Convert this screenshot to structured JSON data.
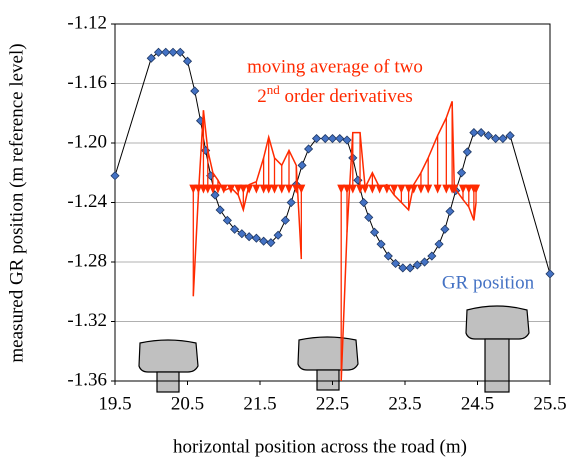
{
  "chart_data": {
    "type": "line",
    "xlabel": "horizontal position across the road (m)",
    "ylabel": "measured GR position (m reference level)",
    "xlim": [
      19.5,
      25.5
    ],
    "xticks": [
      19.5,
      20.5,
      21.5,
      22.5,
      23.5,
      24.5,
      25.5
    ],
    "ylim": [
      -1.36,
      -1.12
    ],
    "yticks": [
      -1.36,
      -1.32,
      -1.28,
      -1.24,
      {
        "value": -1.2,
        "label": "-1.20"
      },
      -1.16,
      -1.12
    ],
    "grid": true,
    "stem_baseline": -1.232,
    "annotation": {
      "line1": "moving average of two",
      "line2_number": "2",
      "line2_superscript": "nd",
      "line2_rest": " order derivatives"
    },
    "series": [
      {
        "name": "GR position",
        "color": "#4472c4",
        "marker": "diamond",
        "x": [
          19.5,
          20.0,
          20.1,
          20.2,
          20.3,
          20.4,
          20.5,
          20.6,
          20.68,
          20.75,
          20.82,
          20.88,
          20.95,
          21.05,
          21.15,
          21.25,
          21.35,
          21.45,
          21.55,
          21.65,
          21.75,
          21.85,
          21.93,
          22.0,
          22.08,
          22.17,
          22.28,
          22.4,
          22.5,
          22.6,
          22.7,
          22.78,
          22.85,
          22.93,
          23.0,
          23.08,
          23.17,
          23.27,
          23.37,
          23.47,
          23.57,
          23.67,
          23.77,
          23.87,
          23.97,
          24.05,
          24.12,
          24.2,
          24.28,
          24.36,
          24.45,
          24.55,
          24.65,
          24.75,
          24.85,
          24.95,
          25.5
        ],
        "values": [
          -1.222,
          -1.143,
          -1.139,
          -1.139,
          -1.139,
          -1.139,
          -1.145,
          -1.165,
          -1.185,
          -1.205,
          -1.222,
          -1.235,
          -1.245,
          -1.252,
          -1.258,
          -1.261,
          -1.263,
          -1.264,
          -1.266,
          -1.267,
          -1.262,
          -1.252,
          -1.24,
          -1.228,
          -1.215,
          -1.204,
          -1.197,
          -1.197,
          -1.197,
          -1.197,
          -1.198,
          -1.21,
          -1.225,
          -1.24,
          -1.25,
          -1.26,
          -1.268,
          -1.276,
          -1.281,
          -1.284,
          -1.284,
          -1.282,
          -1.28,
          -1.276,
          -1.268,
          -1.258,
          -1.246,
          -1.232,
          -1.22,
          -1.206,
          -1.193,
          -1.193,
          -1.195,
          -1.197,
          -1.197,
          -1.195,
          -1.288
        ]
      },
      {
        "color": "#ff2a00",
        "stems": true,
        "x": [
          20.58,
          20.65,
          20.72,
          20.78,
          20.85,
          20.92,
          21.0,
          21.1,
          21.2,
          21.27,
          21.35,
          21.45,
          21.55,
          21.62,
          21.7,
          21.8,
          21.9,
          22.0,
          22.07,
          22.3,
          22.62,
          22.7,
          22.78,
          22.88,
          22.95,
          23.05,
          23.15,
          23.25,
          23.35,
          23.45,
          23.55,
          23.62,
          23.72,
          23.82,
          23.95,
          24.07,
          24.15,
          24.18,
          24.3,
          24.38,
          24.45,
          24.48
        ],
        "values": [
          -1.303,
          -1.235,
          -1.178,
          -1.205,
          -1.22,
          -1.225,
          -1.232,
          -1.23,
          -1.235,
          -1.245,
          -1.228,
          -1.226,
          -1.21,
          -1.196,
          -1.21,
          -1.215,
          -1.205,
          -1.215,
          -1.278,
          null,
          -1.36,
          -1.26,
          -1.193,
          -1.193,
          -1.23,
          -1.22,
          -1.23,
          -1.228,
          -1.235,
          -1.24,
          -1.245,
          -1.228,
          -1.22,
          -1.21,
          -1.195,
          -1.183,
          -1.172,
          -1.23,
          -1.238,
          -1.243,
          -1.252,
          -1.24
        ]
      }
    ]
  }
}
